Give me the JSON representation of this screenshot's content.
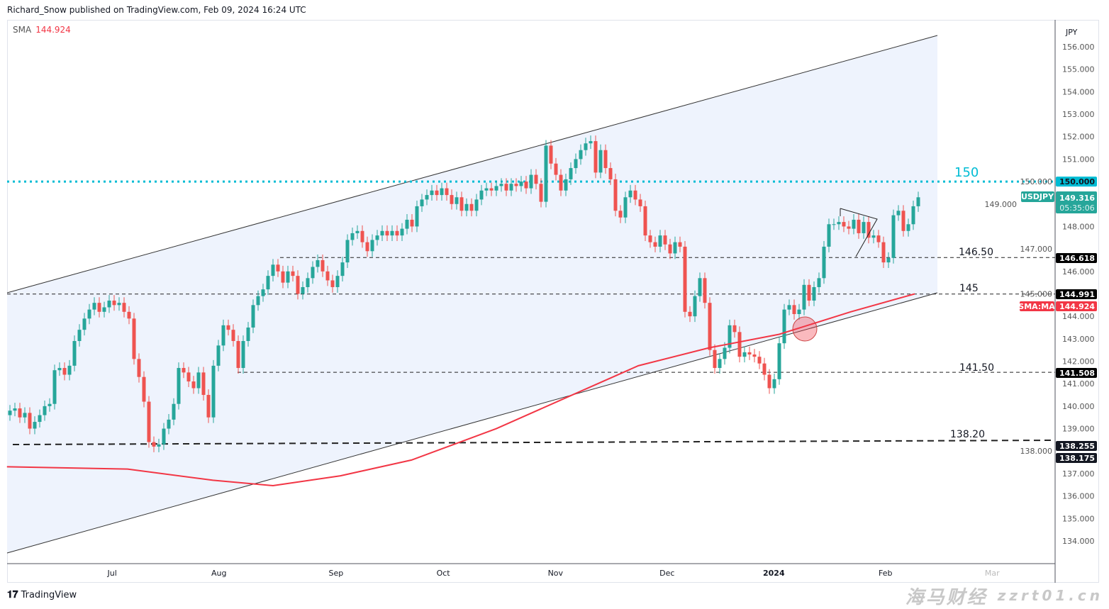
{
  "header": {
    "published": "Richard_Snow published on TradingView.com, Feb 09, 2024 16:24 UTC"
  },
  "legend": {
    "label": "SMA",
    "value": "144.924"
  },
  "logo": {
    "text": "TradingView"
  },
  "watermark": {
    "line1": "海马财经",
    "line2": "zzrt01.cn"
  },
  "colors": {
    "up": "#26a69a",
    "down": "#ef5350",
    "sma": "#f23645",
    "level150": "#00bcd4",
    "channel_fill": "#eef3fd"
  },
  "chart_data": {
    "type": "candlestick",
    "symbol": "USDJPY",
    "currency": "JPY",
    "ylim": [
      133.7,
      156.9
    ],
    "yticks": [
      "156.000",
      "155.000",
      "154.000",
      "153.000",
      "152.000",
      "151.000",
      "150.000",
      "149.000",
      "148.000",
      "147.000",
      "146.000",
      "145.000",
      "144.000",
      "143.000",
      "142.000",
      "141.000",
      "140.000",
      "139.000",
      "138.000",
      "137.000",
      "136.000",
      "135.000",
      "134.000"
    ],
    "xticks": [
      {
        "label": "Jul",
        "index": 20.6
      },
      {
        "label": "Aug",
        "index": 42.1
      },
      {
        "label": "Sep",
        "index": 65.7
      },
      {
        "label": "Oct",
        "index": 87.3
      },
      {
        "label": "Nov",
        "index": 109.9
      },
      {
        "label": "Dec",
        "index": 132.4
      },
      {
        "label": "2024",
        "index": 153.9,
        "bold": true
      },
      {
        "label": "Feb",
        "index": 176.4
      },
      {
        "label": "Mar",
        "index": 197.9,
        "faded": true
      }
    ],
    "first_open": 139.6,
    "closes": [
      139.8,
      139.9,
      139.5,
      139.7,
      139.0,
      139.3,
      139.6,
      140.0,
      140.1,
      141.6,
      141.7,
      141.4,
      141.8,
      142.9,
      143.4,
      143.9,
      144.3,
      144.6,
      144.2,
      144.4,
      144.7,
      144.5,
      144.6,
      144.2,
      143.9,
      142.1,
      141.3,
      140.2,
      138.4,
      138.2,
      138.3,
      139.0,
      139.4,
      140.1,
      141.7,
      141.5,
      141.1,
      140.8,
      141.5,
      140.5,
      139.5,
      141.8,
      142.7,
      143.6,
      143.4,
      142.9,
      141.7,
      142.9,
      143.5,
      144.5,
      144.9,
      145.2,
      145.8,
      146.3,
      146.0,
      145.5,
      146.0,
      145.8,
      145.0,
      145.3,
      145.7,
      146.2,
      146.5,
      146.0,
      145.6,
      145.3,
      145.8,
      146.4,
      147.4,
      147.7,
      147.8,
      147.3,
      146.9,
      147.4,
      147.6,
      147.8,
      147.6,
      147.8,
      147.6,
      147.9,
      148.3,
      148.0,
      148.9,
      149.2,
      149.4,
      149.6,
      149.4,
      149.7,
      149.4,
      149.0,
      149.3,
      148.7,
      149.0,
      148.7,
      149.2,
      149.6,
      149.7,
      149.6,
      149.8,
      149.9,
      149.6,
      149.9,
      149.8,
      150.0,
      149.7,
      150.3,
      149.9,
      149.1,
      151.6,
      150.8,
      150.3,
      149.6,
      150.1,
      150.6,
      151.0,
      151.4,
      151.7,
      151.8,
      150.4,
      151.4,
      150.6,
      150.1,
      148.7,
      148.4,
      149.3,
      149.6,
      149.2,
      148.9,
      147.6,
      147.3,
      147.1,
      147.6,
      147.2,
      146.8,
      147.3,
      147.1,
      144.2,
      144.0,
      144.9,
      145.7,
      144.6,
      142.5,
      141.7,
      142.1,
      142.6,
      143.6,
      143.3,
      142.2,
      142.4,
      142.3,
      142.2,
      141.9,
      141.4,
      140.8,
      141.2,
      142.8,
      144.3,
      144.5,
      144.1,
      144.3,
      145.4,
      144.7,
      145.3,
      145.7,
      147.1,
      148.1,
      148.1,
      148.2,
      148.0,
      147.9,
      148.3,
      147.7,
      148.2,
      147.5,
      147.6,
      147.3,
      146.4,
      146.6,
      148.5,
      148.7,
      147.8,
      148.1,
      148.9,
      149.3
    ],
    "sma": {
      "name": "SMA",
      "points": [
        [
          -0.6,
          137.3
        ],
        [
          23.7,
          137.2
        ],
        [
          40.9,
          136.7
        ],
        [
          53,
          136.46
        ],
        [
          66.6,
          136.9
        ],
        [
          80.9,
          137.6
        ],
        [
          98,
          139.0
        ],
        [
          112.3,
          140.4
        ],
        [
          126.6,
          141.8
        ],
        [
          140.9,
          142.6
        ],
        [
          155,
          143.2
        ],
        [
          169.4,
          144.2
        ],
        [
          182.3,
          145.0
        ]
      ]
    },
    "levels": [
      {
        "price": 150.0,
        "label": "150",
        "axis_label": "150.000",
        "style": "dotted"
      },
      {
        "price": 146.618,
        "label": "146.50",
        "axis_label": "146.618",
        "style": "dashed"
      },
      {
        "price": 144.991,
        "label": "145",
        "axis_label": "144.991",
        "style": "dashed"
      },
      {
        "price": 141.508,
        "label": "141.50",
        "axis_label": "141.508",
        "style": "dashed"
      },
      {
        "price": 138.255,
        "label": "138.20",
        "axis_label": "138.255",
        "style": "dashed-sloped"
      }
    ],
    "extra_axis_label": "138.175",
    "last": {
      "symbol": "USDJPY",
      "price": "149.316",
      "countdown": "05:35:06"
    },
    "sma_tag": {
      "label": "SMA:MA",
      "value": "144.924"
    }
  }
}
